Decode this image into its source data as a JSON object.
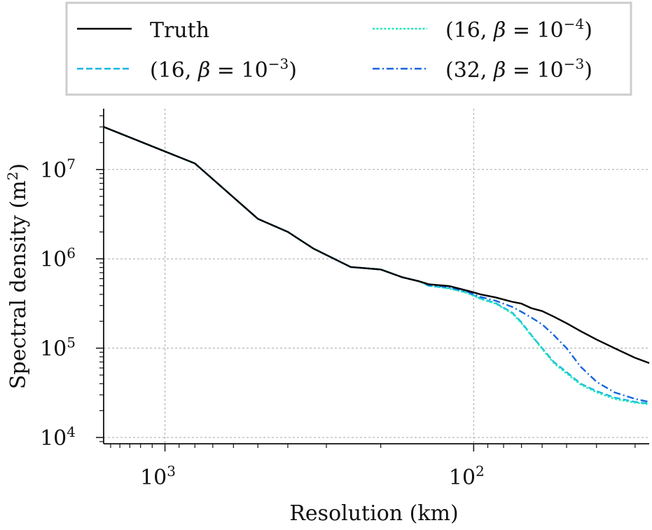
{
  "chart_data": {
    "type": "line",
    "scale": "log-log",
    "x_axis_inverted": true,
    "xlabel": "Resolution (km)",
    "ylabel": "Spectral density (m",
    "ylabel_sup": "2",
    "ylabel_close": ")",
    "xlim": [
      1580,
      27
    ],
    "ylim": [
      8500,
      48000000
    ],
    "grid": true,
    "legend_position": "top",
    "x_ticks": [
      {
        "value": 1000,
        "base": "10",
        "exp": "3"
      },
      {
        "value": 100,
        "base": "10",
        "exp": "2"
      }
    ],
    "y_ticks": [
      {
        "value": 10000,
        "base": "10",
        "exp": "4"
      },
      {
        "value": 100000,
        "base": "10",
        "exp": "5"
      },
      {
        "value": 1000000,
        "base": "10",
        "exp": "6"
      },
      {
        "value": 10000000,
        "base": "10",
        "exp": "7"
      }
    ],
    "series": [
      {
        "name": "Truth",
        "legend": {
          "prefix": "Truth"
        },
        "color": "#000000",
        "style": "solid",
        "x": [
          1580,
          800,
          500,
          400,
          330,
          250,
          200,
          170,
          150,
          140,
          120,
          105,
          100,
          95,
          85,
          75,
          70,
          65,
          60,
          55,
          50,
          45,
          40,
          35,
          30,
          27
        ],
        "y": [
          30000000,
          11700000,
          2800000,
          2000000,
          1300000,
          810000,
          760000,
          620000,
          560000,
          520000,
          495000,
          440000,
          420000,
          400000,
          370000,
          330000,
          315000,
          280000,
          260000,
          225000,
          190000,
          155000,
          125000,
          100000,
          78000,
          68000
        ]
      },
      {
        "name": "(16, β = 10^-3)",
        "legend": {
          "prefix": "(16, ",
          "beta": "β",
          "eq": " = ",
          "base": "10",
          "exp": "−3",
          "suffix": ")"
        },
        "color": "#18b4e8",
        "style": "dashed",
        "x": [
          1580,
          800,
          500,
          400,
          330,
          250,
          200,
          170,
          150,
          140,
          120,
          105,
          100,
          95,
          85,
          75,
          70,
          65,
          60,
          55,
          50,
          45,
          40,
          35,
          30,
          27
        ],
        "y": [
          30000000,
          11700000,
          2800000,
          2000000,
          1300000,
          810000,
          760000,
          620000,
          560000,
          500000,
          470000,
          420000,
          390000,
          360000,
          320000,
          250000,
          195000,
          140000,
          100000,
          70000,
          54000,
          40000,
          33000,
          28000,
          25000,
          24000
        ]
      },
      {
        "name": "(16, β = 10^-4)",
        "legend": {
          "prefix": "(16, ",
          "beta": "β",
          "eq": " = ",
          "base": "10",
          "exp": "−4",
          "suffix": ")"
        },
        "color": "#1de9b6",
        "style": "dotted",
        "x": [
          1580,
          800,
          500,
          400,
          330,
          250,
          200,
          170,
          150,
          140,
          120,
          105,
          100,
          95,
          85,
          75,
          70,
          65,
          60,
          55,
          50,
          45,
          40,
          35,
          30,
          27
        ],
        "y": [
          30000000,
          11700000,
          2800000,
          2000000,
          1300000,
          810000,
          760000,
          620000,
          560000,
          500000,
          465000,
          415000,
          385000,
          355000,
          315000,
          245000,
          190000,
          138000,
          98000,
          68000,
          52000,
          39000,
          32000,
          27000,
          24500,
          23500
        ]
      },
      {
        "name": "(32, β = 10^-3)",
        "legend": {
          "prefix": "(32, ",
          "beta": "β",
          "eq": " = ",
          "base": "10",
          "exp": "−3",
          "suffix": ")"
        },
        "color": "#1565e0",
        "style": "dashdot",
        "x": [
          1580,
          800,
          500,
          400,
          330,
          250,
          200,
          170,
          150,
          140,
          120,
          105,
          100,
          95,
          85,
          75,
          70,
          65,
          60,
          55,
          50,
          45,
          40,
          35,
          30,
          27
        ],
        "y": [
          30000000,
          11700000,
          2800000,
          2000000,
          1300000,
          810000,
          760000,
          620000,
          560000,
          510000,
          480000,
          430000,
          400000,
          375000,
          340000,
          290000,
          255000,
          220000,
          185000,
          140000,
          100000,
          62000,
          42000,
          32000,
          27000,
          25000
        ]
      }
    ]
  }
}
